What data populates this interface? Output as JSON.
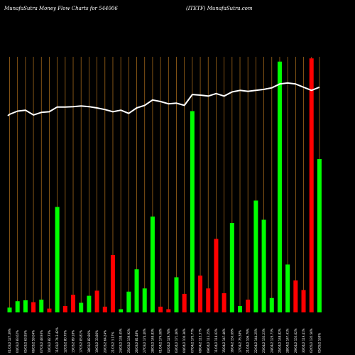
{
  "header": {
    "title": "MunafaSutra  Money Flow  Charts for 544006",
    "subtitle": "(ITETF) MunafaSutra.com"
  },
  "colors": {
    "background": "#000000",
    "grid_line": "#a0661a",
    "up_bar": "#00ff00",
    "down_bar": "#ff0000",
    "price_line": "#ffffff"
  },
  "chart_data": {
    "type": "bar",
    "title": "MunafaSutra  Money Flow  Charts for 544006",
    "subtitle": "(ITETF) MunafaSutra.com",
    "grid": true,
    "categories": [
      "01/03/2 127.39%",
      "04/03/2 83.62%",
      "05/03/2 63.95%",
      "06/03/2 59.04%",
      "07/03/2 48.93%",
      "10/03/2 82.73%",
      "11/03/2 74.3.42%",
      "12/03/2 80.70%",
      "13/03/2 89.18%",
      "17/03/2 83.81%",
      "18/03/2 82.86%",
      "19/03/2 33.86%",
      "20/03/2 64.24%",
      "21/03/2 3.17%",
      "24/03/2 138.45%",
      "25/03/2 139.92%",
      "26/03/2 81.48%",
      "27/03/2 174.40%",
      "28/03/2 149.83%",
      "01/04/2 174.08%",
      "02/04/2 129.78%",
      "03/04/2 171.46%",
      "04/04/2 100.36%",
      "07/04/2 170.77%",
      "08/04/2 115.37%",
      "09/04/2 113.25%",
      "11/04/2 118.02%",
      "15/04/2 147.46%",
      "16/04/2 150.69%",
      "17/04/2 76.38%",
      "21/04/2 196.79%",
      "22/04/2 144.25%",
      "23/04/2 133.23%",
      "24/04/2 129.73%",
      "25/04/2 148.82%",
      "28/04/2 147.41%",
      "29/04/2 153.62%",
      "30/04/2 119.41%",
      "02/05/2 135.56%",
      "05/05/2 169%"
    ],
    "bar_values": [
      1.5,
      3.5,
      3.8,
      3.2,
      4.0,
      1.2,
      33.0,
      2.0,
      5.5,
      3.0,
      5.2,
      6.8,
      1.8,
      18.0,
      1.0,
      6.5,
      13.5,
      7.5,
      30.0,
      1.8,
      1.0,
      11.0,
      5.8,
      63.0,
      11.5,
      7.5,
      23.0,
      6.0,
      28.0,
      2.0,
      4.0,
      35.0,
      29.0,
      4.5,
      78.5,
      15.0,
      10.0,
      7.0,
      79.5,
      48.0
    ],
    "bar_colors": [
      "green",
      "green",
      "green",
      "red",
      "green",
      "red",
      "green",
      "red",
      "red",
      "green",
      "green",
      "red",
      "red",
      "red",
      "green",
      "green",
      "green",
      "green",
      "green",
      "red",
      "red",
      "green",
      "red",
      "green",
      "red",
      "red",
      "red",
      "red",
      "green",
      "green",
      "red",
      "green",
      "green",
      "green",
      "green",
      "green",
      "red",
      "red",
      "red",
      "green"
    ],
    "price_values": [
      62.0,
      63.0,
      63.3,
      61.8,
      62.6,
      62.8,
      64.3,
      64.3,
      64.4,
      64.6,
      64.4,
      64.0,
      63.5,
      62.8,
      63.3,
      62.3,
      64.0,
      64.8,
      66.5,
      66.0,
      65.3,
      65.5,
      64.8,
      68.2,
      68.0,
      67.7,
      68.5,
      67.7,
      69.0,
      69.5,
      69.2,
      69.5,
      69.8,
      70.3,
      71.5,
      71.8,
      71.5,
      70.5,
      69.5,
      70.5
    ],
    "bar_ylim": [
      0,
      80
    ],
    "price_ylim": [
      0,
      80
    ]
  }
}
